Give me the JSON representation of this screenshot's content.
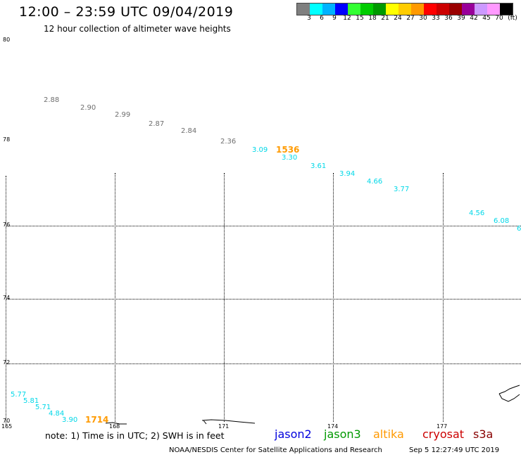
{
  "header": {
    "title": "12:00 – 23:59 UTC 09/04/2019",
    "subtitle": "12 hour collection of altimeter wave heights"
  },
  "colorbar": {
    "colors": [
      "#7f7f7f",
      "#00ffff",
      "#00b2ff",
      "#0000ff",
      "#33ff33",
      "#00cc00",
      "#009900",
      "#ffff00",
      "#ffcc00",
      "#ff9900",
      "#ff0000",
      "#cc0000",
      "#990000",
      "#990099",
      "#cc99ff",
      "#ff99ff",
      "#000000"
    ],
    "labels": [
      "3",
      "6",
      "9",
      "12",
      "15",
      "18",
      "21",
      "24",
      "27",
      "30",
      "33",
      "36",
      "39",
      "42",
      "45",
      "70",
      "(ft)"
    ]
  },
  "axes": {
    "lat_labels": [
      "80",
      "78",
      "76",
      "74",
      "72",
      "70"
    ],
    "lon_labels": [
      "165",
      "168",
      "171",
      "174",
      "177"
    ]
  },
  "wave_heights": {
    "gray": [
      "2.88",
      "2.90",
      "2.99",
      "2.87",
      "2.84",
      "2.36"
    ],
    "cyan_top": [
      "3.09",
      "3.30",
      "3.61",
      "3.94",
      "4.66",
      "3.77",
      "4.56",
      "6.08",
      "6"
    ],
    "cyan_bottom": [
      "5.77",
      "5.81",
      "5.71",
      "4.84",
      "3.90"
    ],
    "time_labels": [
      "1536",
      "1714"
    ]
  },
  "legend": {
    "note": "note: 1) Time is in UTC; 2) SWH is in feet",
    "satellites": [
      {
        "name": "jason2",
        "color": "#0000dd"
      },
      {
        "name": "jason3",
        "color": "#009900"
      },
      {
        "name": "altika",
        "color": "#ff9900"
      },
      {
        "name": "cryosat",
        "color": "#cc0000"
      },
      {
        "name": "s3a",
        "color": "#880000"
      }
    ]
  },
  "footer": {
    "credit": "NOAA/NESDIS Center for Satellite Applications and Research",
    "generated": "Sep  5 12:27:49 UTC 2019"
  }
}
